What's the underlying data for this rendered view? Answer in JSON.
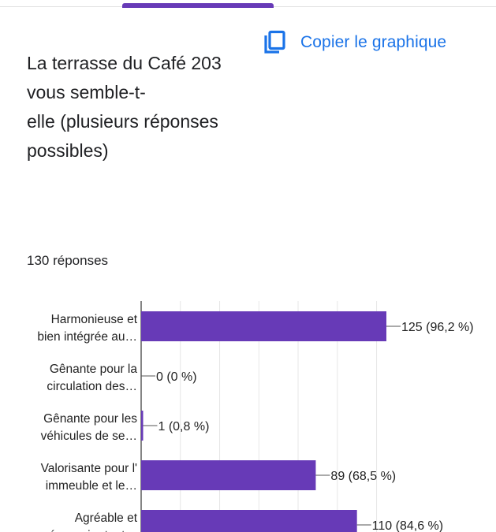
{
  "header": {
    "copy_label": "Copier le graphique",
    "copy_icon": "copy-icon",
    "accent_color": "#673ab7",
    "link_color": "#1a73e8"
  },
  "question": {
    "title": "La terrasse du Café 203\nvous semble-t-\nelle (plusieurs réponses\npossibles)",
    "response_count": "130 réponses"
  },
  "chart_data": {
    "type": "bar",
    "orientation": "horizontal",
    "bar_color": "#673ab7",
    "grid": true,
    "xlim": [
      0,
      130
    ],
    "categories": [
      [
        "Harmonieuse et",
        "bien intégrée au…"
      ],
      [
        "Gênante pour la",
        "circulation des…"
      ],
      [
        "Gênante pour les",
        "véhicules de se…"
      ],
      [
        "Valorisante pour l'",
        "immeuble et le…"
      ],
      [
        "Agréable et",
        "nécessaire tout…"
      ]
    ],
    "values": [
      125,
      0,
      1,
      89,
      110
    ],
    "data_labels": [
      "125 (96,2 %)",
      "0 (0 %)",
      "1 (0,8 %)",
      "89 (68,5 %)",
      "110 (84,6 %)"
    ]
  }
}
